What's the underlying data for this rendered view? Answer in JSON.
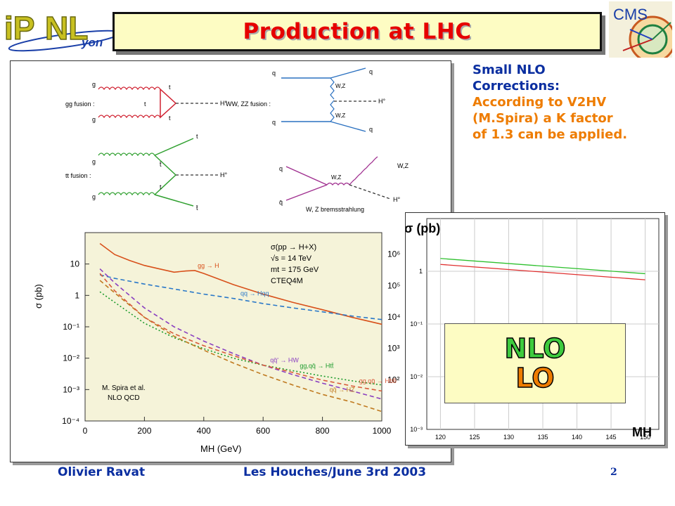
{
  "slide": {
    "title": "Production at LHC",
    "page_number": "2",
    "footer_author": "Olivier Ravat",
    "footer_event": "Les Houches/June 3rd 2003"
  },
  "logos": {
    "left": "IPNL",
    "right": "CMS"
  },
  "note": {
    "line1": "Small NLO",
    "line2": "Corrections:",
    "body1": "According to V2HV",
    "body2": "(M.Spira) a K factor",
    "body3": "of 1.3 can be applied."
  },
  "diagrams": {
    "gg_fusion": {
      "label": "gg fusion :",
      "g": "g",
      "t": "t",
      "H": "H°"
    },
    "ww_fusion": {
      "label": "WW, ZZ fusion :",
      "q": "q",
      "wz": "W,Z",
      "H": "H°"
    },
    "tt_fusion": {
      "label": "tt fusion :",
      "g": "g",
      "t": "t",
      "tbar": "t̄",
      "H": "H°"
    },
    "brems": {
      "label": "W, Z bremsstrahlung",
      "q": "q",
      "qbar": "q̄",
      "wz": "W,Z",
      "H": "H°"
    }
  },
  "chart_data": [
    {
      "type": "line",
      "title": "σ(pp → H+X)",
      "annotations": [
        "√s = 14 TeV",
        "mt = 175 GeV",
        "CTEQ4M",
        "M. Spira et al.",
        "NLO QCD"
      ],
      "xlabel": "MH (GeV)",
      "ylabel": "σ (pb)",
      "xlim": [
        0,
        1000
      ],
      "ylim": [
        0.0001,
        100
      ],
      "yscale": "log",
      "x_ticks": [
        "0",
        "200",
        "400",
        "600",
        "800",
        "1000"
      ],
      "y_ticks": [
        "10⁻⁴",
        "10⁻³",
        "10⁻²",
        "10⁻¹",
        "1",
        "10"
      ],
      "y2_ticks": [
        "10²",
        "10³",
        "10⁴",
        "10⁵",
        "10⁶"
      ],
      "series": [
        {
          "name": "gg → H",
          "color": "#d8501a",
          "style": "solid",
          "x": [
            50,
            100,
            150,
            200,
            250,
            300,
            340,
            370,
            400,
            500,
            600,
            700,
            800,
            900,
            1000
          ],
          "y": [
            45,
            20,
            13,
            9,
            7,
            5.5,
            6,
            6.2,
            5,
            2.2,
            1.1,
            0.6,
            0.35,
            0.2,
            0.12
          ]
        },
        {
          "name": "qq → Hqq",
          "color": "#2a78c8",
          "style": "dashed",
          "x": [
            50,
            100,
            200,
            300,
            400,
            500,
            600,
            700,
            800,
            900,
            1000
          ],
          "y": [
            4.5,
            3.5,
            2.3,
            1.6,
            1.1,
            0.8,
            0.55,
            0.4,
            0.3,
            0.22,
            0.17
          ]
        },
        {
          "name": "qq̄' → HW",
          "color": "#8a3fc0",
          "style": "dashed",
          "x": [
            50,
            100,
            200,
            300,
            400,
            500,
            600,
            700,
            800,
            900,
            1000
          ],
          "y": [
            7,
            2.5,
            0.4,
            0.1,
            0.035,
            0.014,
            0.006,
            0.003,
            0.0016,
            0.0009,
            0.0005
          ]
        },
        {
          "name": "gg,qq̄ → Htt̄",
          "color": "#1a9a2a",
          "style": "dotted",
          "x": [
            50,
            100,
            200,
            300,
            400,
            500,
            600,
            700,
            800,
            900,
            1000
          ],
          "y": [
            1.3,
            0.6,
            0.13,
            0.045,
            0.02,
            0.01,
            0.006,
            0.004,
            0.0027,
            0.0019,
            0.0014
          ]
        },
        {
          "name": "qq̄ → HZ",
          "color": "#c07a20",
          "style": "dashed",
          "x": [
            50,
            100,
            200,
            300,
            400,
            500,
            600,
            700,
            800,
            900,
            1000
          ],
          "y": [
            3,
            1.2,
            0.2,
            0.05,
            0.018,
            0.007,
            0.003,
            0.0014,
            0.0007,
            0.0004,
            0.0002
          ]
        },
        {
          "name": "gg,qq̄ → Hbb̄",
          "color": "#d85a3a",
          "style": "dashed",
          "x": [
            50,
            100,
            200,
            300,
            400,
            500,
            600,
            700,
            800,
            900,
            1000
          ],
          "y": [
            5,
            1.4,
            0.2,
            0.06,
            0.025,
            0.012,
            0.006,
            0.0035,
            0.002,
            0.0013,
            0.0009
          ]
        }
      ]
    },
    {
      "type": "line",
      "title": "σ (pb)",
      "xlabel": "MH",
      "xlim": [
        118,
        152
      ],
      "ylim": [
        0.001,
        10
      ],
      "yscale": "log",
      "x_ticks": [
        "120",
        "125",
        "130",
        "135",
        "140",
        "145",
        "150"
      ],
      "y_ticks": [
        "1",
        "10⁻¹",
        "10⁻²",
        "10⁻³"
      ],
      "legend": [
        "NLO",
        "LO"
      ],
      "series": [
        {
          "name": "NLO",
          "color": "#2ec02e",
          "x": [
            120,
            150
          ],
          "y": [
            1.75,
            0.9
          ]
        },
        {
          "name": "LO",
          "color": "#e03030",
          "x": [
            120,
            150
          ],
          "y": [
            1.35,
            0.69
          ]
        }
      ]
    }
  ]
}
